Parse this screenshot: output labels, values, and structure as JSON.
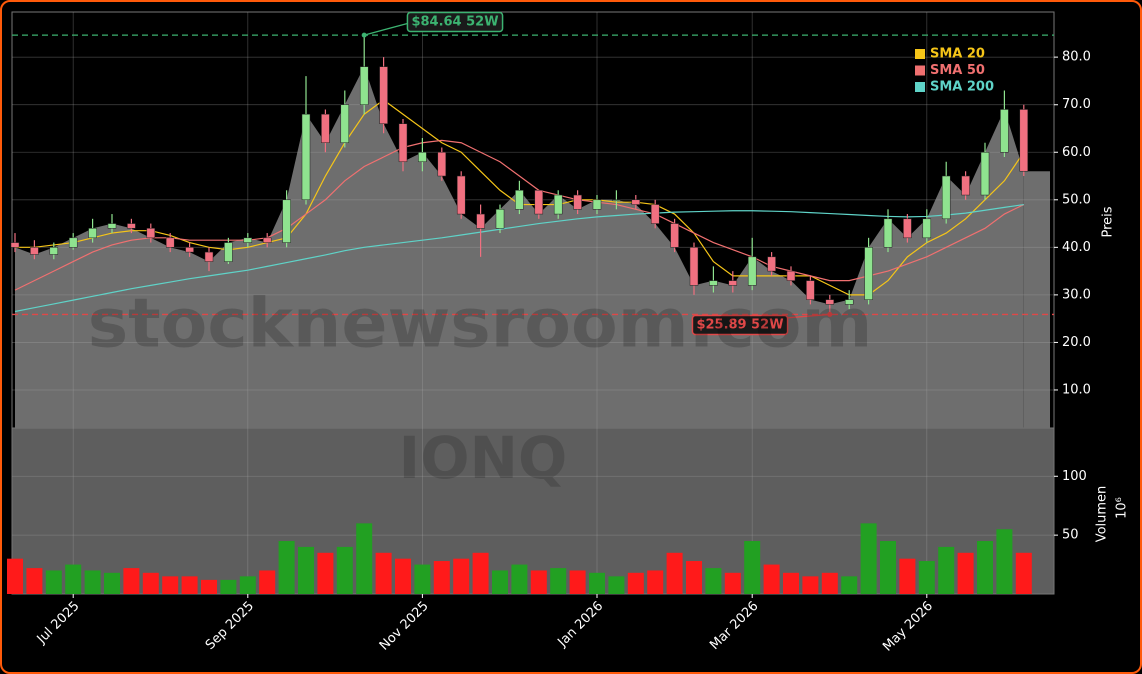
{
  "chart_data": {
    "type": "candlestick",
    "categories": [
      null,
      null,
      null,
      "Jul 2025",
      null,
      null,
      null,
      null,
      null,
      null,
      null,
      null,
      "Sep 2025",
      null,
      null,
      null,
      null,
      null,
      null,
      null,
      null,
      "Nov 2025",
      null,
      null,
      null,
      null,
      null,
      null,
      null,
      null,
      "Jan 2026",
      null,
      null,
      null,
      null,
      null,
      null,
      null,
      "Mar 2026",
      null,
      null,
      null,
      null,
      null,
      null,
      null,
      null,
      "May 2026",
      null,
      null,
      null,
      null,
      null
    ],
    "open": [
      41,
      40,
      38.5,
      40,
      42,
      44,
      45,
      44,
      42,
      40,
      39,
      37,
      41,
      42,
      41,
      50,
      68,
      62,
      70,
      78,
      66,
      58,
      60,
      55,
      47,
      44,
      48,
      52,
      47,
      51,
      48,
      50,
      50,
      49,
      45,
      40,
      32,
      33,
      32,
      38,
      35,
      33,
      29,
      28,
      29,
      40,
      46,
      42,
      46,
      55,
      51,
      60,
      69
    ],
    "high": [
      43,
      41.5,
      41,
      43,
      46,
      47,
      46,
      45,
      43,
      41,
      40,
      42,
      43,
      43,
      52,
      76,
      69,
      73,
      84.64,
      80,
      67,
      63,
      61,
      56,
      49,
      49,
      54,
      52,
      52,
      52,
      51,
      52,
      51,
      50,
      46,
      41,
      36,
      35,
      42,
      39,
      36,
      34,
      30,
      31,
      42,
      48,
      47,
      48,
      58,
      56,
      62,
      73,
      70
    ],
    "low": [
      39,
      37.5,
      37.5,
      39.5,
      41,
      43,
      43,
      41,
      39,
      38,
      35,
      36.5,
      40,
      40,
      40,
      49,
      60,
      61,
      68,
      64,
      56,
      56,
      54,
      46,
      38,
      43,
      47,
      46,
      46,
      47,
      47,
      48,
      48,
      44,
      39,
      30,
      30.5,
      30.5,
      31,
      34,
      32,
      28,
      25.89,
      27,
      28,
      39,
      41,
      41,
      45,
      50,
      50,
      59,
      55
    ],
    "close": [
      40,
      38.5,
      40,
      42,
      44,
      45,
      44,
      42,
      40,
      39,
      37,
      41,
      42,
      41,
      50,
      68,
      62,
      70,
      78,
      66,
      58,
      60,
      55,
      47,
      44,
      48,
      52,
      47,
      51,
      48,
      50,
      50,
      49,
      45,
      40,
      32,
      33,
      32,
      38,
      35,
      33,
      29,
      28,
      29,
      40,
      46,
      42,
      46,
      55,
      51,
      60,
      69,
      56
    ],
    "up_color": "#8fe38f",
    "down_color": "#f07080",
    "area_color": "#6e6e6e",
    "series": [
      {
        "name": "SMA 20",
        "color": "#f5c518",
        "values": [
          40,
          40,
          40.5,
          41,
          42,
          43,
          43.5,
          43.5,
          42.5,
          41,
          40,
          39.5,
          40,
          41,
          42,
          47,
          55,
          62,
          68,
          71,
          68,
          65,
          62,
          60,
          56,
          52,
          49,
          49,
          49,
          50,
          50,
          49.5,
          49.5,
          49,
          47,
          43,
          37,
          34,
          34,
          34,
          34,
          34,
          32,
          30,
          30,
          33,
          38,
          41,
          43,
          46,
          50,
          54,
          60
        ]
      },
      {
        "name": "SMA 50",
        "color": "#f07070",
        "values": [
          31,
          33,
          35,
          37,
          39,
          40.5,
          41.5,
          42,
          42,
          41.5,
          41.5,
          41.5,
          41.5,
          42,
          44,
          47,
          50,
          54,
          57,
          59,
          61,
          62,
          62.5,
          62,
          60,
          58,
          55,
          52,
          51,
          50,
          49.5,
          49,
          48,
          47,
          45,
          43,
          41,
          39.5,
          38,
          36,
          35,
          34,
          33,
          33,
          34,
          35,
          36.5,
          38,
          40,
          42,
          44,
          47,
          49
        ]
      },
      {
        "name": "SMA 200",
        "color": "#5fd3c8",
        "values": [
          26.5,
          27.3,
          28.1,
          28.9,
          29.7,
          30.5,
          31.3,
          32,
          32.7,
          33.4,
          34,
          34.6,
          35.2,
          36,
          36.8,
          37.6,
          38.4,
          39.3,
          40,
          40.5,
          41,
          41.5,
          42,
          42.6,
          43.2,
          43.8,
          44.4,
          45,
          45.5,
          46,
          46.4,
          46.7,
          47,
          47.2,
          47.4,
          47.5,
          47.6,
          47.7,
          47.7,
          47.6,
          47.5,
          47.3,
          47.1,
          46.9,
          46.7,
          46.5,
          46.4,
          46.5,
          46.8,
          47.2,
          47.8,
          48.4,
          49
        ]
      }
    ],
    "ylim": [
      2.0,
      89.5
    ],
    "yticks": [
      {
        "value": 10,
        "label": "10.0"
      },
      {
        "value": 20,
        "label": "20.0"
      },
      {
        "value": 30,
        "label": "30.0"
      },
      {
        "value": 40,
        "label": "40.0"
      },
      {
        "value": 50,
        "label": "50.0"
      },
      {
        "value": 60,
        "label": "60.0"
      },
      {
        "value": 70,
        "label": "70.0"
      },
      {
        "value": 80,
        "label": "80.0"
      }
    ],
    "ylabel": "Preis",
    "grid": true,
    "legend": "upper right",
    "high_line": {
      "value": 84.64,
      "label": "$84.64 52W",
      "color": "#3cb371"
    },
    "low_line": {
      "value": 25.89,
      "label": "$25.89 52W",
      "color": "#e04848"
    },
    "volume": {
      "values": [
        30,
        22,
        20,
        25,
        20,
        18,
        22,
        18,
        15,
        15,
        12,
        12,
        15,
        20,
        45,
        40,
        35,
        40,
        60,
        35,
        30,
        25,
        28,
        30,
        35,
        20,
        25,
        20,
        22,
        20,
        18,
        15,
        18,
        20,
        35,
        28,
        22,
        18,
        45,
        25,
        18,
        15,
        18,
        15,
        60,
        45,
        30,
        28,
        40,
        35,
        45,
        55,
        35
      ],
      "up_color": "#22a022",
      "down_color": "#ff1a1a",
      "ylim": [
        0,
        141
      ],
      "yticks": [
        50,
        100
      ],
      "ylabel": "Volumen",
      "unit": "10⁶"
    },
    "watermark": "stocknewsroom.com",
    "symbol": "IONQ"
  }
}
